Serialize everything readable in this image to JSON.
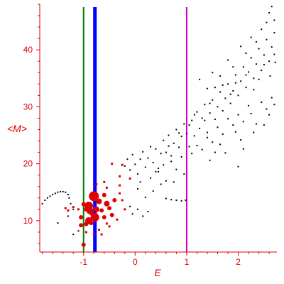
{
  "chart_data": {
    "type": "scatter",
    "xlabel": "E",
    "ylabel": "<M>",
    "xlim": [
      -1.85,
      2.75
    ],
    "ylim": [
      4.5,
      48
    ],
    "xticks": [
      -1,
      0,
      1,
      2
    ],
    "yticks": [
      10,
      20,
      30,
      40
    ],
    "grid": false,
    "legend": "none",
    "colors": {
      "axis": "#e00000",
      "black_points": "#000000",
      "red_points": "#e00000",
      "line_green": "#008000",
      "line_blue": "#0000ff",
      "line_magenta": "#cc00cc"
    },
    "vertical_lines": [
      {
        "x": -1.0,
        "color": "#008000"
      },
      {
        "x": -0.78,
        "color": "#0000ff"
      },
      {
        "x": 1.0,
        "color": "#cc00cc"
      }
    ],
    "black_points": [
      [
        -1.8,
        13.0
      ],
      [
        -1.75,
        13.6
      ],
      [
        -1.7,
        14.0
      ],
      [
        -1.65,
        14.3
      ],
      [
        -1.6,
        14.6
      ],
      [
        -1.55,
        14.8
      ],
      [
        -1.5,
        15.0
      ],
      [
        -1.45,
        15.1
      ],
      [
        -1.4,
        15.1
      ],
      [
        -1.35,
        15.0
      ],
      [
        -1.3,
        14.6
      ],
      [
        -1.28,
        14.0
      ],
      [
        -1.25,
        13.0
      ],
      [
        -1.2,
        12.0
      ],
      [
        -1.5,
        9.6
      ],
      [
        -1.3,
        10.8
      ],
      [
        -1.2,
        7.6
      ],
      [
        -1.1,
        8.2
      ],
      [
        -0.2,
        19.6
      ],
      [
        -0.15,
        20.8
      ],
      [
        -0.1,
        18.9
      ],
      [
        -0.05,
        21.6
      ],
      [
        0.0,
        19.9
      ],
      [
        0.05,
        18.2
      ],
      [
        0.1,
        20.8
      ],
      [
        0.15,
        22.1
      ],
      [
        0.2,
        19.4
      ],
      [
        0.25,
        21.0
      ],
      [
        0.3,
        23.0
      ],
      [
        0.35,
        20.2
      ],
      [
        0.4,
        22.6
      ],
      [
        0.45,
        18.6
      ],
      [
        0.5,
        21.8
      ],
      [
        0.55,
        24.1
      ],
      [
        0.6,
        22.0
      ],
      [
        0.65,
        25.0
      ],
      [
        0.7,
        21.4
      ],
      [
        0.75,
        23.6
      ],
      [
        0.8,
        26.0
      ],
      [
        0.85,
        22.9
      ],
      [
        0.9,
        24.8
      ],
      [
        0.95,
        27.0
      ],
      [
        1.0,
        25.3
      ],
      [
        1.05,
        23.0
      ],
      [
        1.1,
        27.6
      ],
      [
        1.15,
        24.9
      ],
      [
        1.2,
        29.1
      ],
      [
        1.25,
        26.2
      ],
      [
        1.3,
        28.0
      ],
      [
        1.35,
        30.4
      ],
      [
        1.4,
        25.5
      ],
      [
        1.45,
        28.9
      ],
      [
        1.5,
        31.2
      ],
      [
        1.55,
        27.8
      ],
      [
        1.6,
        30.0
      ],
      [
        1.65,
        32.6
      ],
      [
        1.7,
        29.3
      ],
      [
        1.75,
        31.5
      ],
      [
        1.8,
        34.0
      ],
      [
        1.85,
        30.6
      ],
      [
        1.9,
        32.8
      ],
      [
        1.95,
        35.6
      ],
      [
        2.0,
        32.0
      ],
      [
        2.05,
        34.5
      ],
      [
        2.1,
        37.0
      ],
      [
        2.15,
        33.4
      ],
      [
        2.2,
        36.1
      ],
      [
        2.25,
        38.6
      ],
      [
        2.3,
        35.0
      ],
      [
        2.35,
        37.5
      ],
      [
        2.4,
        40.2
      ],
      [
        2.45,
        36.4
      ],
      [
        2.5,
        39.1
      ],
      [
        2.55,
        41.8
      ],
      [
        2.6,
        38.0
      ],
      [
        2.65,
        40.5
      ],
      [
        2.7,
        43.0
      ],
      [
        2.72,
        37.8
      ],
      [
        0.05,
        15.6
      ],
      [
        0.1,
        16.8
      ],
      [
        0.2,
        14.1
      ],
      [
        0.3,
        17.5
      ],
      [
        0.35,
        15.2
      ],
      [
        0.4,
        18.6
      ],
      [
        0.5,
        16.4
      ],
      [
        0.55,
        19.8
      ],
      [
        0.6,
        17.0
      ],
      [
        0.7,
        20.4
      ],
      [
        0.75,
        16.8
      ],
      [
        0.8,
        19.0
      ],
      [
        0.9,
        21.2
      ],
      [
        0.95,
        18.2
      ],
      [
        0.6,
        13.9
      ],
      [
        0.7,
        13.7
      ],
      [
        0.8,
        13.6
      ],
      [
        0.9,
        13.5
      ],
      [
        0.98,
        13.6
      ],
      [
        -0.1,
        12.5
      ],
      [
        -0.05,
        11.2
      ],
      [
        0.05,
        12.0
      ],
      [
        0.15,
        10.8
      ],
      [
        0.25,
        11.6
      ],
      [
        1.1,
        21.8
      ],
      [
        1.2,
        23.2
      ],
      [
        1.3,
        22.5
      ],
      [
        1.4,
        24.6
      ],
      [
        1.5,
        23.8
      ],
      [
        1.6,
        26.4
      ],
      [
        1.7,
        25.2
      ],
      [
        1.8,
        27.9
      ],
      [
        1.9,
        26.8
      ],
      [
        2.0,
        28.6
      ],
      [
        2.1,
        27.4
      ],
      [
        2.2,
        30.2
      ],
      [
        1.45,
        20.6
      ],
      [
        1.55,
        22.0
      ],
      [
        1.65,
        23.4
      ],
      [
        1.75,
        21.9
      ],
      [
        1.95,
        25.6
      ],
      [
        2.05,
        24.2
      ],
      [
        2.25,
        28.8
      ],
      [
        2.35,
        27.0
      ],
      [
        2.45,
        30.8
      ],
      [
        2.55,
        29.6
      ],
      [
        2.65,
        31.6
      ],
      [
        2.7,
        30.4
      ],
      [
        2.0,
        19.5
      ],
      [
        2.1,
        22.6
      ],
      [
        2.3,
        25.5
      ],
      [
        2.5,
        26.8
      ],
      [
        2.6,
        28.6
      ],
      [
        1.25,
        34.8
      ],
      [
        1.4,
        33.2
      ],
      [
        1.5,
        36.0
      ],
      [
        1.65,
        35.4
      ],
      [
        1.8,
        38.2
      ],
      [
        1.9,
        37.0
      ],
      [
        2.05,
        40.6
      ],
      [
        2.15,
        39.4
      ],
      [
        2.25,
        42.2
      ],
      [
        2.35,
        41.4
      ],
      [
        2.45,
        43.6
      ],
      [
        2.55,
        44.8
      ],
      [
        2.6,
        46.5
      ],
      [
        2.65,
        47.6
      ],
      [
        2.7,
        45.2
      ],
      [
        0.45,
        19.2
      ],
      [
        0.65,
        23.1
      ],
      [
        0.85,
        25.4
      ],
      [
        1.05,
        26.8
      ],
      [
        1.15,
        28.6
      ],
      [
        1.35,
        27.6
      ],
      [
        1.45,
        30.6
      ],
      [
        1.55,
        33.4
      ],
      [
        1.7,
        33.8
      ],
      [
        1.85,
        32.2
      ],
      [
        1.95,
        34.2
      ],
      [
        2.15,
        35.6
      ],
      [
        2.3,
        33.0
      ],
      [
        2.4,
        34.8
      ],
      [
        2.5,
        37.4
      ],
      [
        2.62,
        35.4
      ],
      [
        2.7,
        39.2
      ]
    ],
    "red_points": [
      {
        "x": -0.95,
        "y": 12.0,
        "r": 3
      },
      {
        "x": -0.9,
        "y": 12.6,
        "r": 6
      },
      {
        "x": -0.85,
        "y": 11.3,
        "r": 3
      },
      {
        "x": -0.8,
        "y": 14.3,
        "r": 7
      },
      {
        "x": -0.78,
        "y": 10.6,
        "r": 6
      },
      {
        "x": -0.9,
        "y": 10.0,
        "r": 5
      },
      {
        "x": -0.95,
        "y": 9.4,
        "r": 3
      },
      {
        "x": -1.05,
        "y": 9.2,
        "r": 3
      },
      {
        "x": -0.85,
        "y": 9.6,
        "r": 3
      },
      {
        "x": -0.7,
        "y": 13.4,
        "r": 4
      },
      {
        "x": -0.65,
        "y": 11.8,
        "r": 3
      },
      {
        "x": -0.6,
        "y": 14.5,
        "r": 3
      },
      {
        "x": -0.55,
        "y": 13.0,
        "r": 4
      },
      {
        "x": -0.5,
        "y": 12.2,
        "r": 3
      },
      {
        "x": -0.45,
        "y": 11.0,
        "r": 3
      },
      {
        "x": -0.4,
        "y": 13.6,
        "r": 3
      },
      {
        "x": -0.6,
        "y": 10.6,
        "r": 3
      },
      {
        "x": -0.55,
        "y": 9.5,
        "r": 2
      },
      {
        "x": -0.7,
        "y": 8.4,
        "r": 2
      },
      {
        "x": -0.75,
        "y": 16.4,
        "r": 2
      },
      {
        "x": -0.6,
        "y": 16.8,
        "r": 2
      },
      {
        "x": -0.55,
        "y": 15.8,
        "r": 2
      },
      {
        "x": -0.3,
        "y": 14.8,
        "r": 2
      },
      {
        "x": -0.3,
        "y": 16.2,
        "r": 2
      },
      {
        "x": -0.25,
        "y": 13.6,
        "r": 2
      },
      {
        "x": -0.35,
        "y": 10.2,
        "r": 2
      },
      {
        "x": -0.2,
        "y": 12.0,
        "r": 2
      },
      {
        "x": -0.1,
        "y": 17.4,
        "r": 2
      },
      {
        "x": -0.45,
        "y": 20.0,
        "r": 2
      },
      {
        "x": -0.25,
        "y": 19.8,
        "r": 2
      },
      {
        "x": -0.3,
        "y": 17.8,
        "r": 2
      },
      {
        "x": -0.5,
        "y": 9.0,
        "r": 2
      },
      {
        "x": -0.65,
        "y": 7.6,
        "r": 2
      },
      {
        "x": -0.8,
        "y": 7.6,
        "r": 2
      },
      {
        "x": -0.95,
        "y": 8.0,
        "r": 2
      },
      {
        "x": -1.0,
        "y": 5.8,
        "r": 3
      },
      {
        "x": -1.1,
        "y": 12.0,
        "r": 2
      },
      {
        "x": -1.2,
        "y": 12.4,
        "r": 2
      },
      {
        "x": -1.3,
        "y": 11.8,
        "r": 2
      },
      {
        "x": -1.35,
        "y": 12.2,
        "r": 2
      },
      {
        "x": -1.0,
        "y": 12.9,
        "r": 3
      },
      {
        "x": -1.05,
        "y": 10.6,
        "r": 3
      },
      {
        "x": -0.75,
        "y": 12.0,
        "r": 4
      },
      {
        "x": -0.88,
        "y": 11.8,
        "r": 5
      }
    ]
  }
}
